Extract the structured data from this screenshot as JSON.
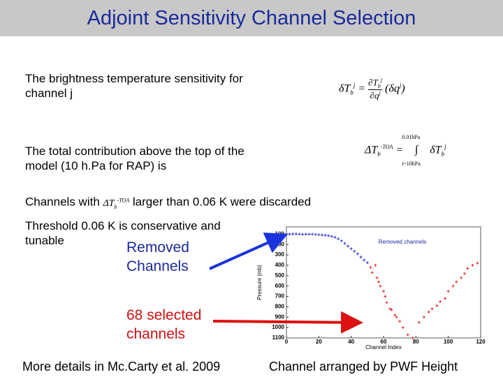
{
  "header": {
    "title": "Adjoint Sensitivity Channel Selection"
  },
  "items": [
    "The brightness temperature sensitivity for channel j",
    "The total contribution above the top of the model (10 h.Pa for RAP) is"
  ],
  "eq1": {
    "lhs": "δT",
    "lhs_sub": "b",
    "lhs_sup": "j",
    "eq": "=",
    "num": "∂T",
    "num_sub": "b",
    "num_sup": "j",
    "den": "∂q",
    "den_sup": "j",
    "rhs": "(δq",
    "rhs_sup": "j",
    "close": ")"
  },
  "eq2": {
    "lhs": "ΔT",
    "lhs_sub": "b",
    "lhs_sup": "-TOA",
    "eq": "=",
    "upper": "0.01hPa",
    "op": "∫",
    "lower": "i~10hPa",
    "term": "δT",
    "term_sub": "b",
    "term_sup": "j"
  },
  "discard": {
    "before": "Channels with",
    "symbol": "ΔT",
    "sub": "b",
    "sup": "-TOA",
    "after": "larger than 0.06 K were discarded"
  },
  "threshold": "Threshold 0.06 K is conservative and tunable",
  "labels": {
    "removed": "Removed Channels",
    "selected": "68 selected channels"
  },
  "footer": {
    "left": "More details in Mc.Carty et al. 2009",
    "right": "Channel arranged by PWF Height"
  },
  "chart_data": {
    "type": "scatter",
    "title": "Removed channels",
    "xlabel": "Channel Index",
    "ylabel": "Pressure (mb)",
    "xlim": [
      0,
      120
    ],
    "xticks": [
      0,
      20,
      40,
      60,
      80,
      100,
      120
    ],
    "ylim": [
      30,
      1100
    ],
    "y_inverted": true,
    "yticks": [
      100,
      200,
      300,
      400,
      500,
      600,
      700,
      800,
      900,
      1000,
      1100
    ],
    "series": [
      {
        "color": "#2233cc",
        "x": [
          2,
          4,
          6,
          8,
          10,
          12,
          14,
          16,
          18,
          20,
          22,
          24,
          26,
          28,
          30,
          32,
          34,
          36,
          38,
          40,
          42,
          44,
          46,
          48,
          50
        ],
        "values": [
          100,
          98,
          97,
          100,
          102,
          100,
          101,
          100,
          102,
          105,
          108,
          110,
          115,
          122,
          130,
          145,
          165,
          190,
          215,
          240,
          265,
          290,
          320,
          350,
          375
        ]
      },
      {
        "color": "#dd2222",
        "x": [
          52,
          53,
          55,
          56,
          57,
          58,
          60,
          61,
          62,
          64,
          65,
          67,
          68,
          70,
          72,
          75,
          78,
          82,
          85,
          88,
          90,
          93,
          95,
          98,
          100,
          103,
          105,
          108,
          110,
          112,
          115,
          118
        ],
        "values": [
          420,
          470,
          400,
          520,
          560,
          600,
          650,
          700,
          760,
          820,
          830,
          880,
          900,
          940,
          1000,
          1070,
          1100,
          950,
          900,
          850,
          820,
          790,
          750,
          720,
          650,
          600,
          560,
          520,
          480,
          430,
          400,
          380
        ]
      }
    ]
  }
}
